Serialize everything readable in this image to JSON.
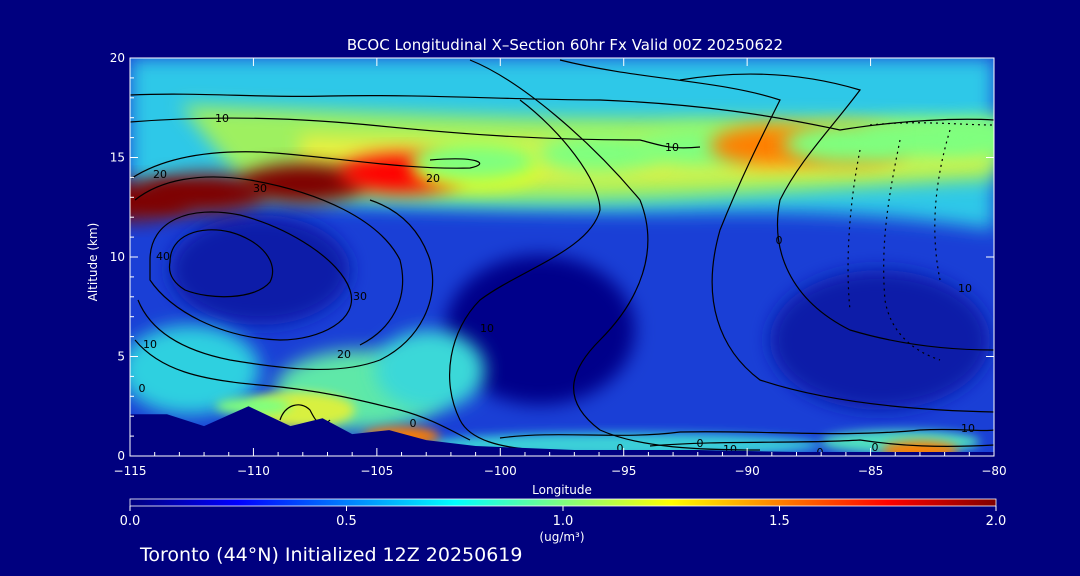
{
  "chart_data": {
    "type": "heatmap",
    "title": "BCOC Longitudinal X–Section 60hr  Fx Valid 00Z 20250622",
    "subtitle": "Toronto (44°N) Initialized 12Z 20250619",
    "xlabel": "Longitude",
    "ylabel": "Altitude (km)",
    "xlim": [
      -115,
      -80
    ],
    "ylim": [
      0,
      20
    ],
    "x_ticks": [
      -115,
      -110,
      -105,
      -100,
      -95,
      -90,
      -85,
      -80
    ],
    "x_tick_labels": [
      "−115",
      "−110",
      "−105",
      "−100",
      "−95",
      "−90",
      "−85",
      "−80"
    ],
    "y_ticks": [
      0,
      5,
      10,
      15,
      20
    ],
    "y_tick_labels": [
      "0",
      "5",
      "10",
      "15",
      "20"
    ],
    "colorbar": {
      "label": "(ug/m³)",
      "range": [
        0.0,
        2.0
      ],
      "ticks": [
        0.0,
        0.5,
        1.0,
        1.5,
        2.0
      ],
      "tick_labels": [
        "0.0",
        "0.5",
        "1.0",
        "1.5",
        "2.0"
      ],
      "colormap": [
        "#00007f",
        "#0000ff",
        "#007fff",
        "#00ffff",
        "#7fff7f",
        "#ffff00",
        "#ff7f00",
        "#ff0000",
        "#7f0000"
      ]
    },
    "smoke_layers": [
      {
        "lon": [
          -115,
          -112,
          -108,
          -104,
          -101
        ],
        "alt": [
          12.8,
          13.2,
          13.7,
          14.2,
          14.5
        ],
        "value": [
          1.9,
          2.0,
          1.9,
          1.7,
          1.3
        ]
      },
      {
        "lon": [
          -101,
          -96,
          -92,
          -89,
          -86
        ],
        "alt": [
          14.8,
          15.2,
          15.5,
          15.6,
          15.6
        ],
        "value": [
          1.0,
          1.0,
          1.1,
          1.4,
          1.5
        ]
      },
      {
        "lon": [
          -86,
          -83,
          -80
        ],
        "alt": [
          15.7,
          15.9,
          16.0
        ],
        "value": [
          1.1,
          1.0,
          0.9
        ]
      }
    ],
    "surface_smoke": [
      {
        "lon": -110,
        "alt": 2.5,
        "value": 1.0
      },
      {
        "lon": -104,
        "alt": 1.0,
        "value": 1.4
      },
      {
        "lon": -83,
        "alt": 0.3,
        "value": 1.5
      }
    ],
    "contour_labels": [
      "10",
      "20",
      "30",
      "40",
      "30",
      "20",
      "10",
      "0",
      "20",
      "10",
      "0",
      "10",
      "0",
      "10",
      "0",
      "0",
      "10",
      "0",
      "10",
      "0"
    ],
    "terrain": {
      "lon": [
        -115,
        -113.5,
        -112,
        -110.2,
        -108.5,
        -107.2,
        -106,
        -104.5,
        -103,
        -101,
        -99,
        -97,
        -92,
        -88,
        -84,
        -80
      ],
      "alt": [
        2.1,
        2.1,
        1.5,
        2.5,
        1.5,
        1.9,
        1.1,
        1.3,
        0.8,
        0.5,
        0.4,
        0.3,
        0.3,
        0.2,
        0.2,
        0.2
      ]
    }
  }
}
